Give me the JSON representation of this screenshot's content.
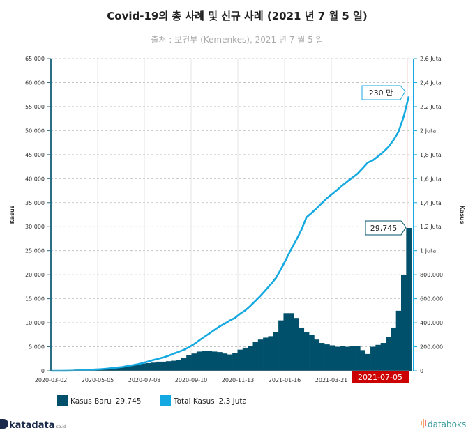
{
  "chart_data": {
    "type": "bar+line",
    "title": "Covid-19의 총 사례 및 신규 사례 (2021 년 7 월 5 일)",
    "subtitle": "출처 : 보건부 (Kemenkes), 2021 년 7 월 5 일",
    "ylabel_left": "Kasus",
    "ylabel_right": "Kasus",
    "ylim_left": [
      0,
      65000
    ],
    "ylim_right": [
      0,
      2600000
    ],
    "xlim": [
      "2020-03-02",
      "2021-07-05"
    ],
    "grid": true,
    "x_tick_labels": [
      "2020-03-02",
      "2020-05-05",
      "2020-07-08",
      "2020-09-10",
      "2020-11-13",
      "2021-01-16",
      "2021-03-21",
      "2021-07-05"
    ],
    "y_left_tick_labels": [
      "0",
      "5.000",
      "10.000",
      "15.000",
      "20.000",
      "25.000",
      "30.000",
      "35.000",
      "40.000",
      "45.000",
      "50.000",
      "55.000",
      "60.000",
      "65.000"
    ],
    "y_right_tick_labels": [
      "0",
      "200.000",
      "400.000",
      "600.000",
      "800.000",
      "1 Juta",
      "1,2 Juta",
      "1,4 Juta",
      "1,6 Juta",
      "1,8 Juta",
      "2 Juta",
      "2,2 Juta",
      "2,4 Juta",
      "2,6 Juta"
    ],
    "highlight_date": "2021-07-05",
    "dates": [
      "2020-03-02",
      "2020-03-09",
      "2020-03-16",
      "2020-03-23",
      "2020-03-30",
      "2020-04-06",
      "2020-04-13",
      "2020-04-20",
      "2020-04-27",
      "2020-05-04",
      "2020-05-11",
      "2020-05-18",
      "2020-05-25",
      "2020-06-01",
      "2020-06-08",
      "2020-06-15",
      "2020-06-22",
      "2020-06-29",
      "2020-07-06",
      "2020-07-13",
      "2020-07-20",
      "2020-07-27",
      "2020-08-03",
      "2020-08-10",
      "2020-08-17",
      "2020-08-24",
      "2020-08-31",
      "2020-09-07",
      "2020-09-14",
      "2020-09-21",
      "2020-09-28",
      "2020-10-05",
      "2020-10-12",
      "2020-10-19",
      "2020-10-26",
      "2020-11-02",
      "2020-11-09",
      "2020-11-16",
      "2020-11-23",
      "2020-11-30",
      "2020-12-07",
      "2020-12-14",
      "2020-12-21",
      "2020-12-28",
      "2021-01-04",
      "2021-01-11",
      "2021-01-18",
      "2021-01-25",
      "2021-02-01",
      "2021-02-08",
      "2021-02-15",
      "2021-02-22",
      "2021-03-01",
      "2021-03-08",
      "2021-03-15",
      "2021-03-22",
      "2021-03-29",
      "2021-04-05",
      "2021-04-12",
      "2021-04-19",
      "2021-04-26",
      "2021-05-03",
      "2021-05-10",
      "2021-05-17",
      "2021-05-24",
      "2021-05-31",
      "2021-06-07",
      "2021-06-14",
      "2021-06-21",
      "2021-06-28",
      "2021-07-05"
    ],
    "series": [
      {
        "name": "Kasus Baru",
        "type": "bar",
        "axis": "left",
        "color": "#00506b",
        "values": [
          2,
          20,
          60,
          100,
          130,
          250,
          300,
          350,
          380,
          450,
          500,
          550,
          600,
          700,
          900,
          1050,
          1100,
          1250,
          1500,
          1600,
          1700,
          1900,
          1900,
          2000,
          2100,
          2300,
          2700,
          3200,
          3600,
          4000,
          4200,
          4100,
          4000,
          3900,
          3600,
          3400,
          3700,
          4400,
          4800,
          5200,
          6000,
          6500,
          6900,
          7200,
          8000,
          10500,
          12000,
          12000,
          11000,
          9000,
          8000,
          7500,
          6500,
          5800,
          5500,
          5300,
          5000,
          5200,
          5000,
          5200,
          5100,
          4300,
          3500,
          5000,
          5400,
          5800,
          7000,
          9000,
          12500,
          20000,
          29745
        ]
      },
      {
        "name": "Total Kasus",
        "type": "line",
        "axis": "right",
        "color": "#14a9e0",
        "values": [
          2,
          19,
          172,
          579,
          1414,
          2491,
          4557,
          6760,
          9096,
          11587,
          14265,
          18010,
          22750,
          27549,
          32033,
          39294,
          46845,
          55092,
          64958,
          76981,
          89869,
          100303,
          111455,
          125396,
          143043,
          157859,
          174796,
          196989,
          221523,
          252923,
          282724,
          311176,
          340622,
          368842,
          392934,
          418375,
          440569,
          474455,
          502110,
          538883,
          581550,
          624573,
          671778,
          719219,
          772096,
          846765,
          927380,
          1012350,
          1089308,
          1173189,
          1278653,
          1314634,
          1353834,
          1396464,
          1437283,
          1471225,
          1505775,
          1542516,
          1577526,
          1609300,
          1641194,
          1686373,
          1734285,
          1753101,
          1786187,
          1821703,
          1863031,
          1919547,
          1989909,
          2115304,
          2284084
        ]
      }
    ],
    "annotations": {
      "total_label": "230 만",
      "new_label": "29,745"
    },
    "legend": [
      {
        "label": "Kasus Baru",
        "value": "29.745",
        "color": "#00506b"
      },
      {
        "label": "Total Kasus",
        "value": "2,3 Juta",
        "color": "#14a9e0"
      }
    ],
    "legend_placement": "bottom-left",
    "highlight_color": "#cc0000"
  },
  "branding": {
    "left_logo": "katadata",
    "left_logo_suffix": "co.id",
    "right_logo": "databoks"
  }
}
